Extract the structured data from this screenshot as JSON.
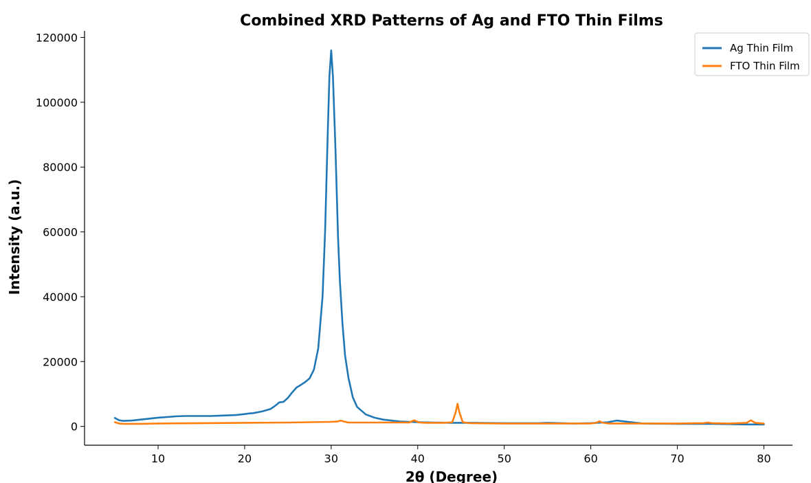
{
  "chart_data": {
    "type": "line",
    "title": "Combined XRD Patterns of Ag and FTO Thin Films",
    "xlabel": "2θ (Degree)",
    "ylabel": "Intensity (a.u.)",
    "xlim": [
      1.5,
      83.3
    ],
    "ylim": [
      -5800,
      122000
    ],
    "xticks": [
      10,
      20,
      30,
      40,
      50,
      60,
      70,
      80
    ],
    "yticks": [
      0,
      20000,
      40000,
      60000,
      80000,
      100000,
      120000
    ],
    "xtick_labels": [
      "10",
      "20",
      "30",
      "40",
      "50",
      "60",
      "70",
      "80"
    ],
    "ytick_labels": [
      "0",
      "20000",
      "40000",
      "60000",
      "80000",
      "100000",
      "120000"
    ],
    "grid": false,
    "legend_position": "top-right",
    "series": [
      {
        "name": "Ag Thin Film",
        "color": "#1f77b4",
        "x": [
          5,
          5.5,
          6,
          7,
          8,
          9,
          10,
          11,
          12,
          13,
          14,
          15,
          16,
          17,
          18,
          19,
          20,
          20.5,
          21,
          22,
          23,
          23.5,
          24,
          24.5,
          25,
          25.5,
          26,
          26.5,
          27,
          27.5,
          28,
          28.5,
          29,
          29.3,
          29.6,
          29.8,
          30,
          30.2,
          30.5,
          30.8,
          31,
          31.3,
          31.6,
          32,
          32.5,
          33,
          34,
          35,
          36,
          38,
          40,
          42,
          44,
          46,
          50,
          54,
          55,
          58,
          60,
          62,
          63,
          64,
          66,
          70,
          74,
          78,
          80
        ],
        "y": [
          2600,
          1900,
          1700,
          1800,
          2100,
          2400,
          2700,
          2900,
          3100,
          3200,
          3200,
          3200,
          3200,
          3300,
          3400,
          3500,
          3800,
          4000,
          4100,
          4600,
          5400,
          6300,
          7400,
          7600,
          8800,
          10500,
          12000,
          12800,
          13700,
          14800,
          17500,
          24000,
          40000,
          60000,
          90000,
          108000,
          116000,
          108000,
          85000,
          58000,
          45000,
          32000,
          22000,
          15000,
          9000,
          6000,
          3700,
          2700,
          2100,
          1500,
          1300,
          1200,
          1100,
          1100,
          1000,
          1000,
          1100,
          900,
          1000,
          1300,
          1800,
          1500,
          900,
          800,
          800,
          600,
          600
        ]
      },
      {
        "name": "FTO Thin Film",
        "color": "#ff7f0e",
        "x": [
          5,
          5.5,
          6,
          8,
          10,
          15,
          20,
          25,
          30,
          30.7,
          31.1,
          31.5,
          32,
          35,
          39,
          39.6,
          40.2,
          41,
          43,
          44,
          44.4,
          44.6,
          44.8,
          45.2,
          46,
          50,
          55,
          60,
          60.7,
          61,
          61.3,
          62,
          65,
          70,
          73,
          73.5,
          74,
          76,
          78,
          78.5,
          79,
          80
        ],
        "y": [
          1300,
          900,
          800,
          800,
          900,
          1000,
          1100,
          1200,
          1400,
          1500,
          1800,
          1500,
          1200,
          1200,
          1200,
          1900,
          1200,
          1100,
          1100,
          1300,
          4500,
          7000,
          4500,
          1300,
          1000,
          900,
          900,
          900,
          1200,
          1600,
          1200,
          900,
          900,
          900,
          1000,
          1200,
          1000,
          900,
          1100,
          1900,
          1100,
          900
        ]
      }
    ]
  }
}
